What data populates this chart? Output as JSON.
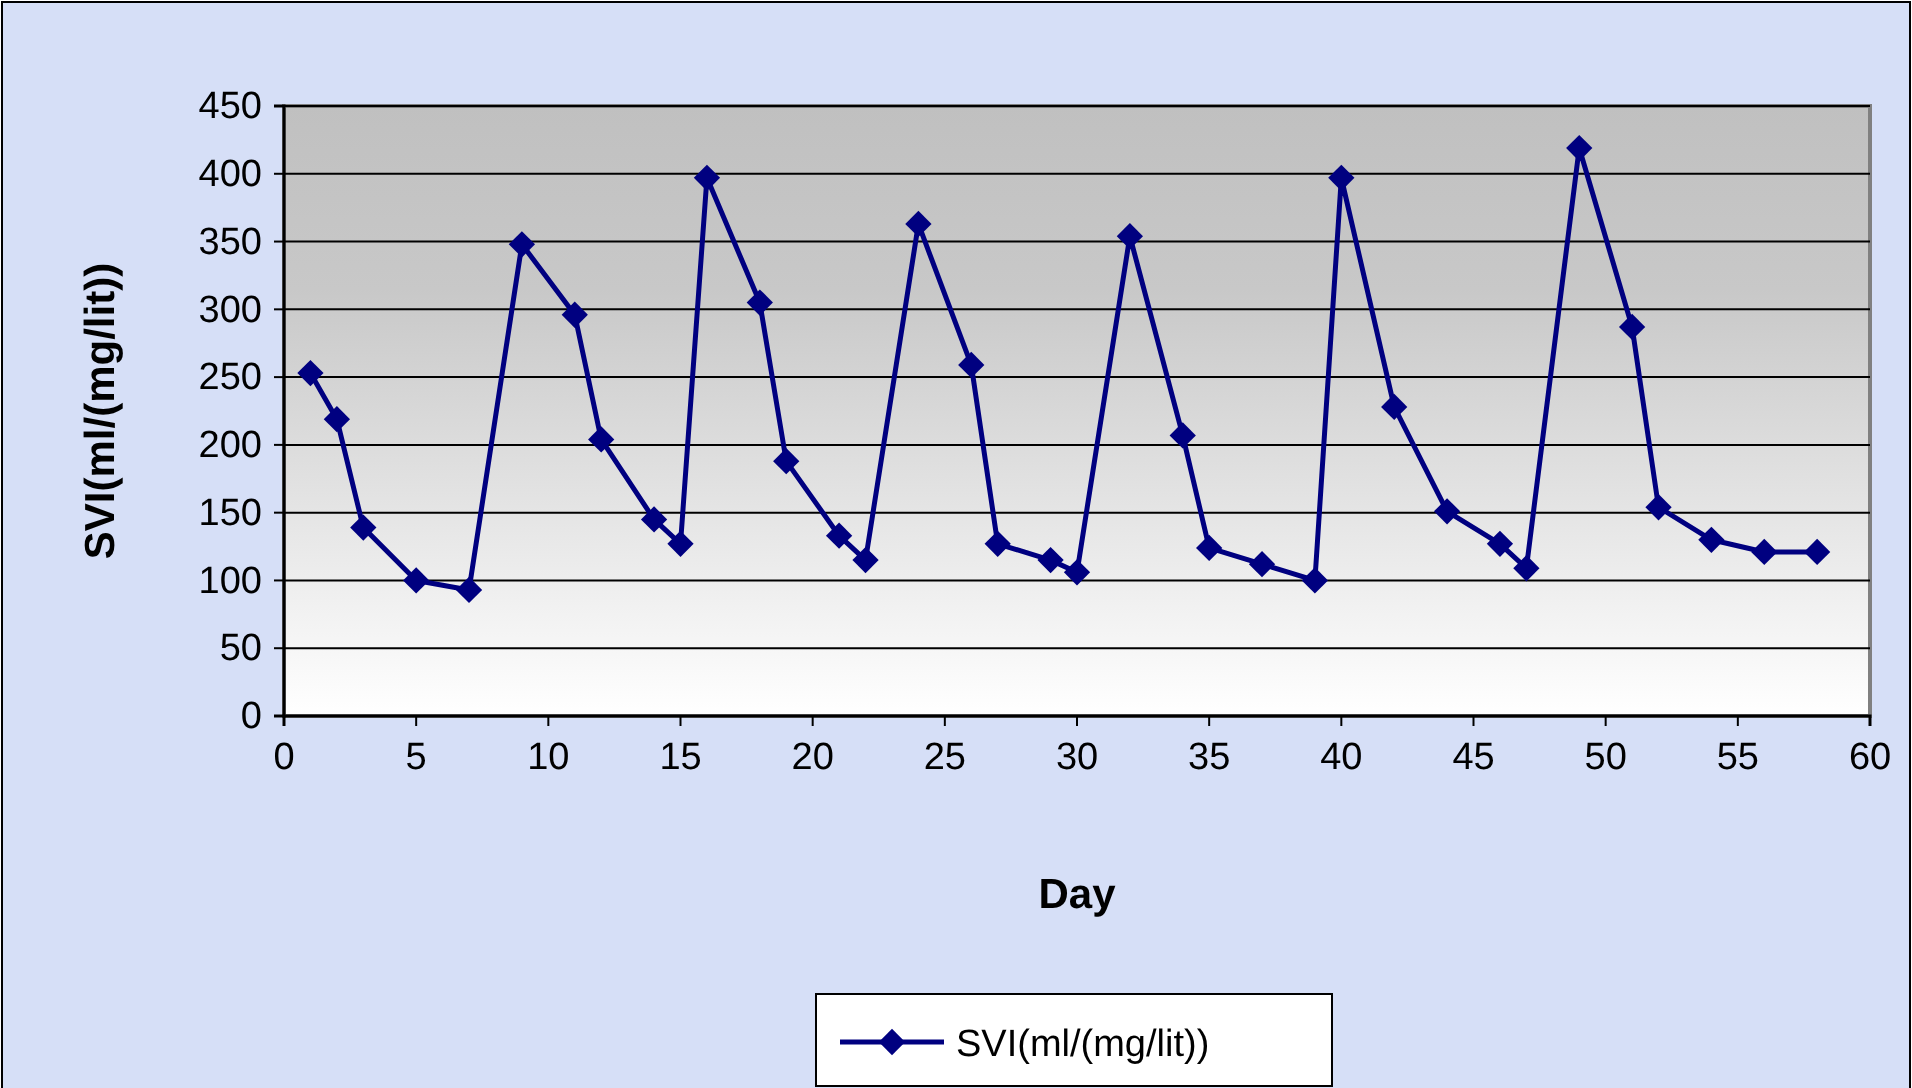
{
  "chart_data": {
    "type": "line",
    "xlabel": "Day",
    "ylabel": "SVI(ml/(mg/lit))",
    "x": [
      1,
      2,
      3,
      5,
      7,
      9,
      11,
      12,
      14,
      15,
      16,
      18,
      19,
      21,
      22,
      24,
      26,
      27,
      29,
      30,
      32,
      34,
      35,
      37,
      39,
      40,
      42,
      44,
      46,
      47,
      49,
      51,
      52,
      54,
      56,
      58
    ],
    "series": [
      {
        "name": "SVI(ml/(mg/lit))",
        "color": "#000080",
        "values": [
          253,
          219,
          139,
          100,
          93,
          348,
          296,
          204,
          145,
          127,
          397,
          305,
          188,
          133,
          115,
          363,
          259,
          127,
          115,
          106,
          354,
          207,
          124,
          112,
          100,
          397,
          228,
          151,
          127,
          109,
          419,
          287,
          154,
          130,
          121,
          121
        ]
      }
    ],
    "xlim": [
      0,
      60
    ],
    "xticks": [
      0,
      5,
      10,
      15,
      20,
      25,
      30,
      35,
      40,
      45,
      50,
      55,
      60
    ],
    "ylim": [
      0,
      450
    ],
    "yticks": [
      0,
      50,
      100,
      150,
      200,
      250,
      300,
      350,
      400,
      450
    ],
    "grid": "y",
    "legend": "bottom",
    "marker": "diamond",
    "line_style": "solid"
  }
}
